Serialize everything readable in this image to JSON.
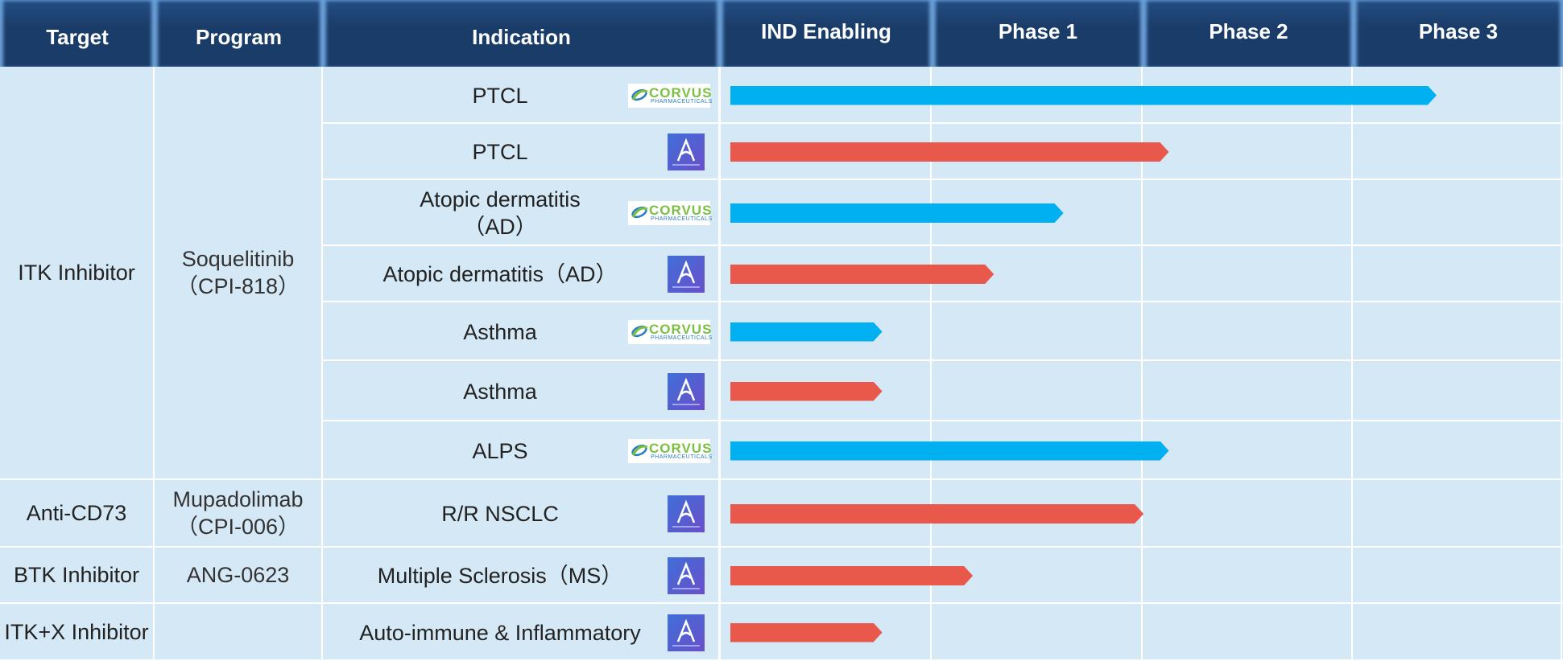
{
  "chart_data": {
    "type": "pipeline",
    "headers": [
      "Target",
      "Program",
      "Indication",
      "IND Enabling",
      "Phase 1",
      "Phase 2",
      "Phase 3"
    ],
    "xlim": [
      0,
      4
    ],
    "xticks": [
      0,
      1,
      2,
      3,
      4
    ],
    "grid": true,
    "partner_tagline": "PHARMACEUTICALS",
    "groups": [
      {
        "target": "ITK Inhibitor",
        "program": "Soquelitinib\n（CPI-818）",
        "rows": [
          {
            "indication": "PTCL",
            "partner": "CORVUS",
            "color": "#00b0f0",
            "value": 3.4
          },
          {
            "indication": "PTCL",
            "partner": null,
            "color": "#e8584b",
            "value": 2.13
          },
          {
            "indication": "Atopic dermatitis\n（AD）",
            "partner": "CORVUS",
            "color": "#00b0f0",
            "value": 1.63
          },
          {
            "indication": "Atopic dermatitis（AD）",
            "partner": null,
            "color": "#e8584b",
            "value": 1.3
          },
          {
            "indication": "Asthma",
            "partner": "CORVUS",
            "color": "#00b0f0",
            "value": 0.77
          },
          {
            "indication": "Asthma",
            "partner": null,
            "color": "#e8584b",
            "value": 0.77
          },
          {
            "indication": "ALPS",
            "partner": "CORVUS",
            "color": "#00b0f0",
            "value": 2.13
          }
        ]
      },
      {
        "target": "Anti-CD73",
        "program": "Mupadolimab\n（CPI-006）",
        "rows": [
          {
            "indication": "R/R NSCLC",
            "partner": null,
            "color": "#e8584b",
            "value": 2.01
          }
        ]
      },
      {
        "target": "BTK Inhibitor",
        "program": "ANG-0623",
        "rows": [
          {
            "indication": "Multiple Sclerosis（MS）",
            "partner": null,
            "color": "#e8584b",
            "value": 1.2
          }
        ]
      },
      {
        "target": "ITK+X Inhibitor",
        "program": "",
        "rows": [
          {
            "indication": "Auto-immune & Inflammatory",
            "partner": null,
            "color": "#e8584b",
            "value": 0.77
          }
        ]
      }
    ]
  }
}
